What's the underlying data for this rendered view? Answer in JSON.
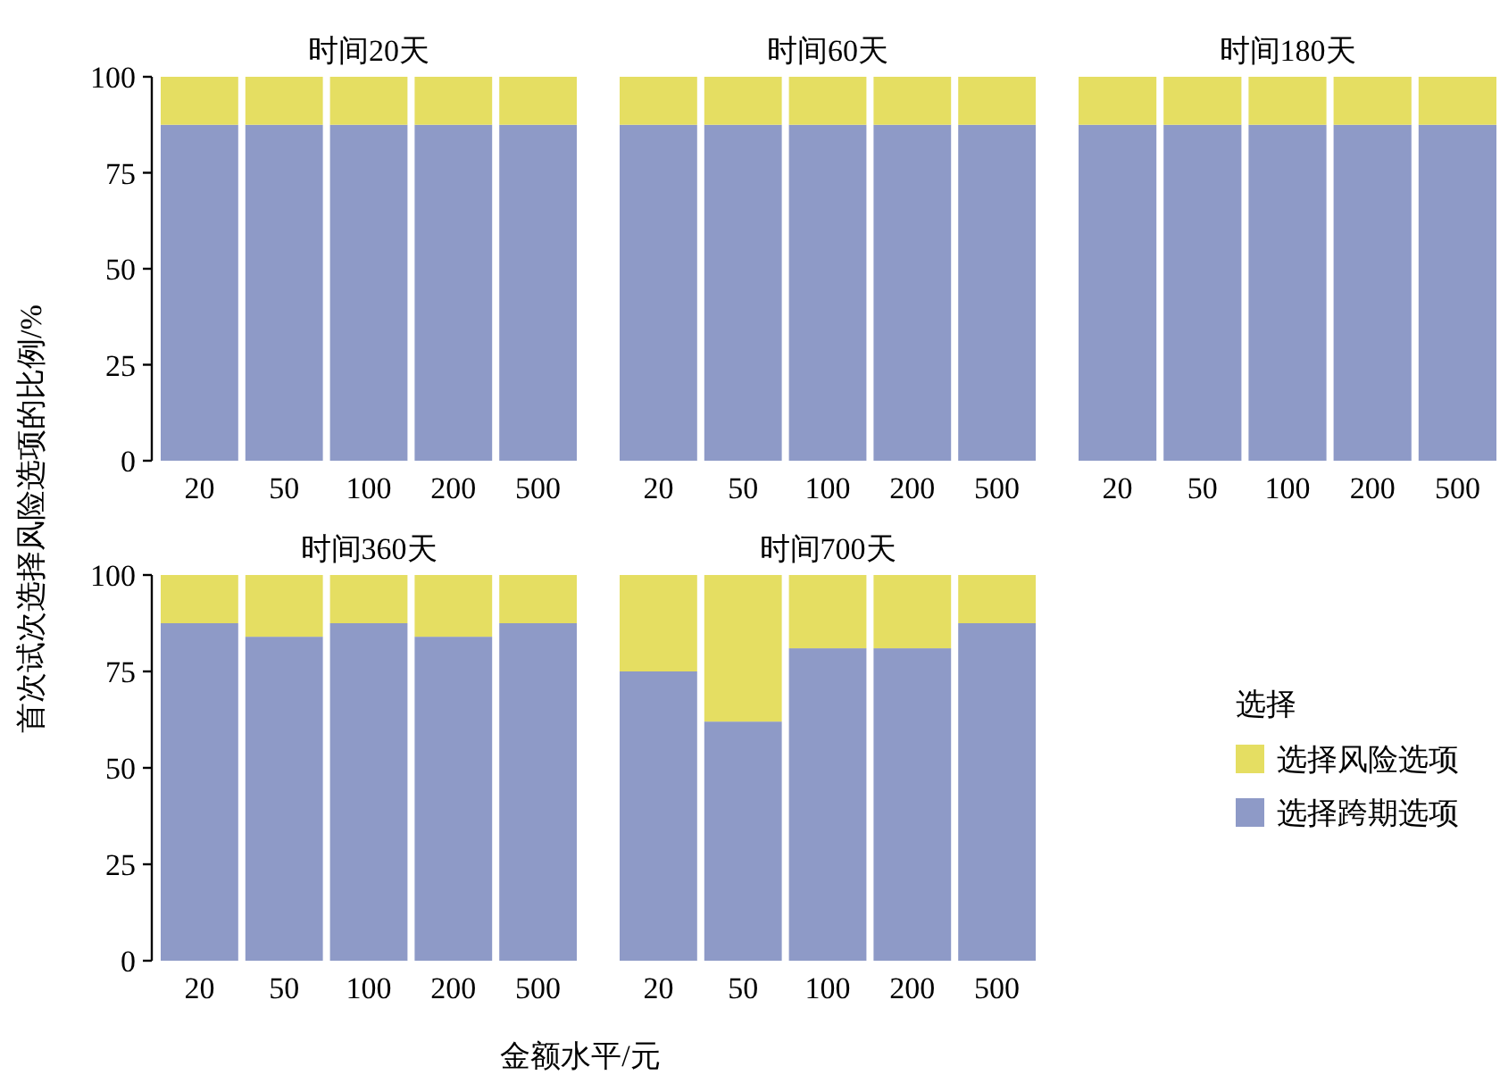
{
  "chart_data": [
    {
      "type": "bar",
      "title": "时间20天",
      "ylabel": "首次试次选择风险选项的比例/%",
      "stacked": true,
      "categories": [
        "20",
        "50",
        "100",
        "200",
        "500"
      ],
      "ylim": [
        0,
        100
      ],
      "yticks": [
        0,
        25,
        50,
        75,
        100
      ],
      "series": [
        {
          "color": "#8e9ac7",
          "values": [
            87.5,
            87.5,
            87.5,
            87.5,
            87.5
          ]
        },
        {
          "color": "#e5de62",
          "values": [
            12.5,
            12.5,
            12.5,
            12.5,
            12.5
          ]
        }
      ]
    },
    {
      "type": "bar",
      "title": "时间60天",
      "stacked": true,
      "tick_labels": "x",
      "categories": [
        "20",
        "50",
        "100",
        "200",
        "500"
      ],
      "ylim": [
        0,
        100
      ],
      "series": [
        {
          "color": "#8e9ac7",
          "values": [
            87.5,
            87.5,
            87.5,
            87.5,
            87.5
          ]
        },
        {
          "color": "#e5de62",
          "values": [
            12.5,
            12.5,
            12.5,
            12.5,
            12.5
          ]
        }
      ]
    },
    {
      "type": "bar",
      "title": "时间180天",
      "stacked": true,
      "tick_labels": "x",
      "categories": [
        "20",
        "50",
        "100",
        "200",
        "500"
      ],
      "ylim": [
        0,
        100
      ],
      "series": [
        {
          "color": "#8e9ac7",
          "values": [
            87.5,
            87.5,
            87.5,
            87.5,
            87.5
          ]
        },
        {
          "color": "#e5de62",
          "values": [
            12.5,
            12.5,
            12.5,
            12.5,
            12.5
          ]
        }
      ]
    },
    {
      "type": "bar",
      "title": "时间360天",
      "stacked": true,
      "categories": [
        "20",
        "50",
        "100",
        "200",
        "500"
      ],
      "ylim": [
        0,
        100
      ],
      "yticks": [
        0,
        25,
        50,
        75,
        100
      ],
      "series": [
        {
          "color": "#8e9ac7",
          "values": [
            87.5,
            84,
            87.5,
            84,
            87.5
          ]
        },
        {
          "color": "#e5de62",
          "values": [
            12.5,
            16,
            12.5,
            16,
            12.5
          ]
        }
      ]
    },
    {
      "type": "bar",
      "title": "时间700天",
      "xlabel": "金额水平/元",
      "stacked": true,
      "tick_labels": "x",
      "legend": "right",
      "legend_title": "选择",
      "categories": [
        "20",
        "50",
        "100",
        "200",
        "500"
      ],
      "ylim": [
        0,
        100
      ],
      "series": [
        {
          "name": "选择跨期选项",
          "color": "#8e9ac7",
          "values": [
            75,
            62,
            81,
            81,
            87.5
          ]
        },
        {
          "name": "选择风险选项",
          "color": "#e5de62",
          "values": [
            25,
            38,
            19,
            19,
            12.5
          ]
        }
      ]
    }
  ]
}
